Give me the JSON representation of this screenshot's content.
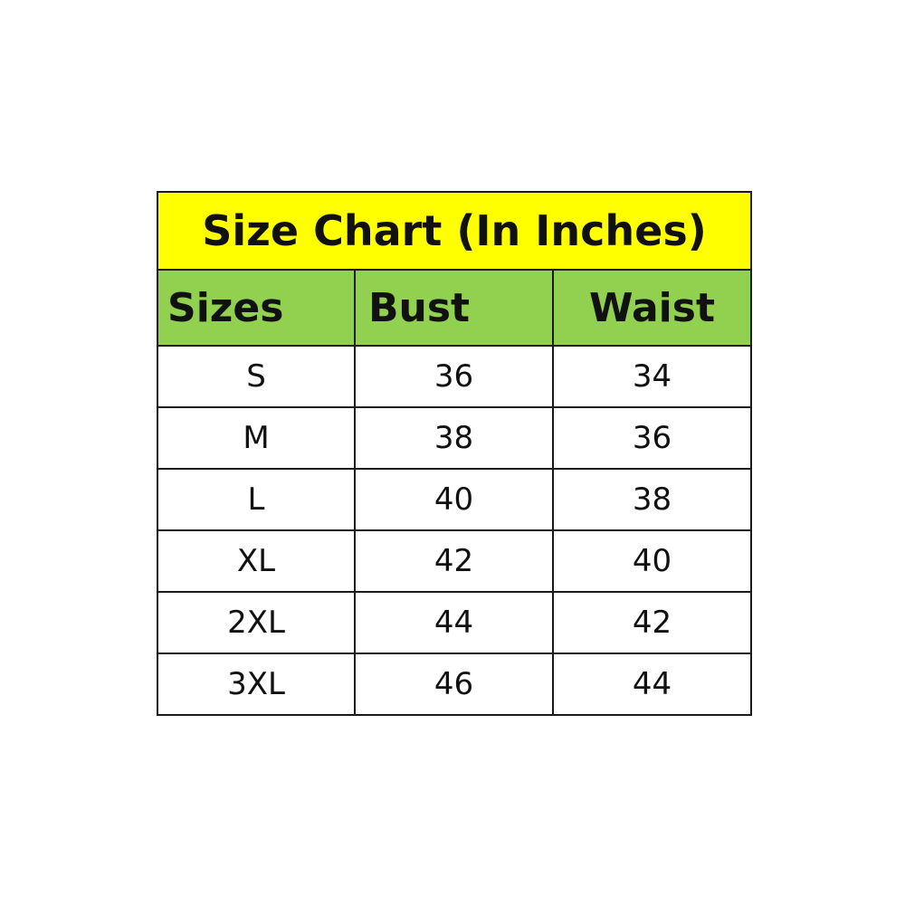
{
  "title": "Size Chart (In Inches)",
  "colors": {
    "title_bg": "#ffff00",
    "header_bg": "#92d050"
  },
  "headers": [
    "Sizes",
    "Bust",
    "Waist"
  ],
  "rows": [
    [
      "S",
      "36",
      "34"
    ],
    [
      "M",
      "38",
      "36"
    ],
    [
      "L",
      "40",
      "38"
    ],
    [
      "XL",
      "42",
      "40"
    ],
    [
      "2XL",
      "44",
      "42"
    ],
    [
      "3XL",
      "46",
      "44"
    ]
  ]
}
